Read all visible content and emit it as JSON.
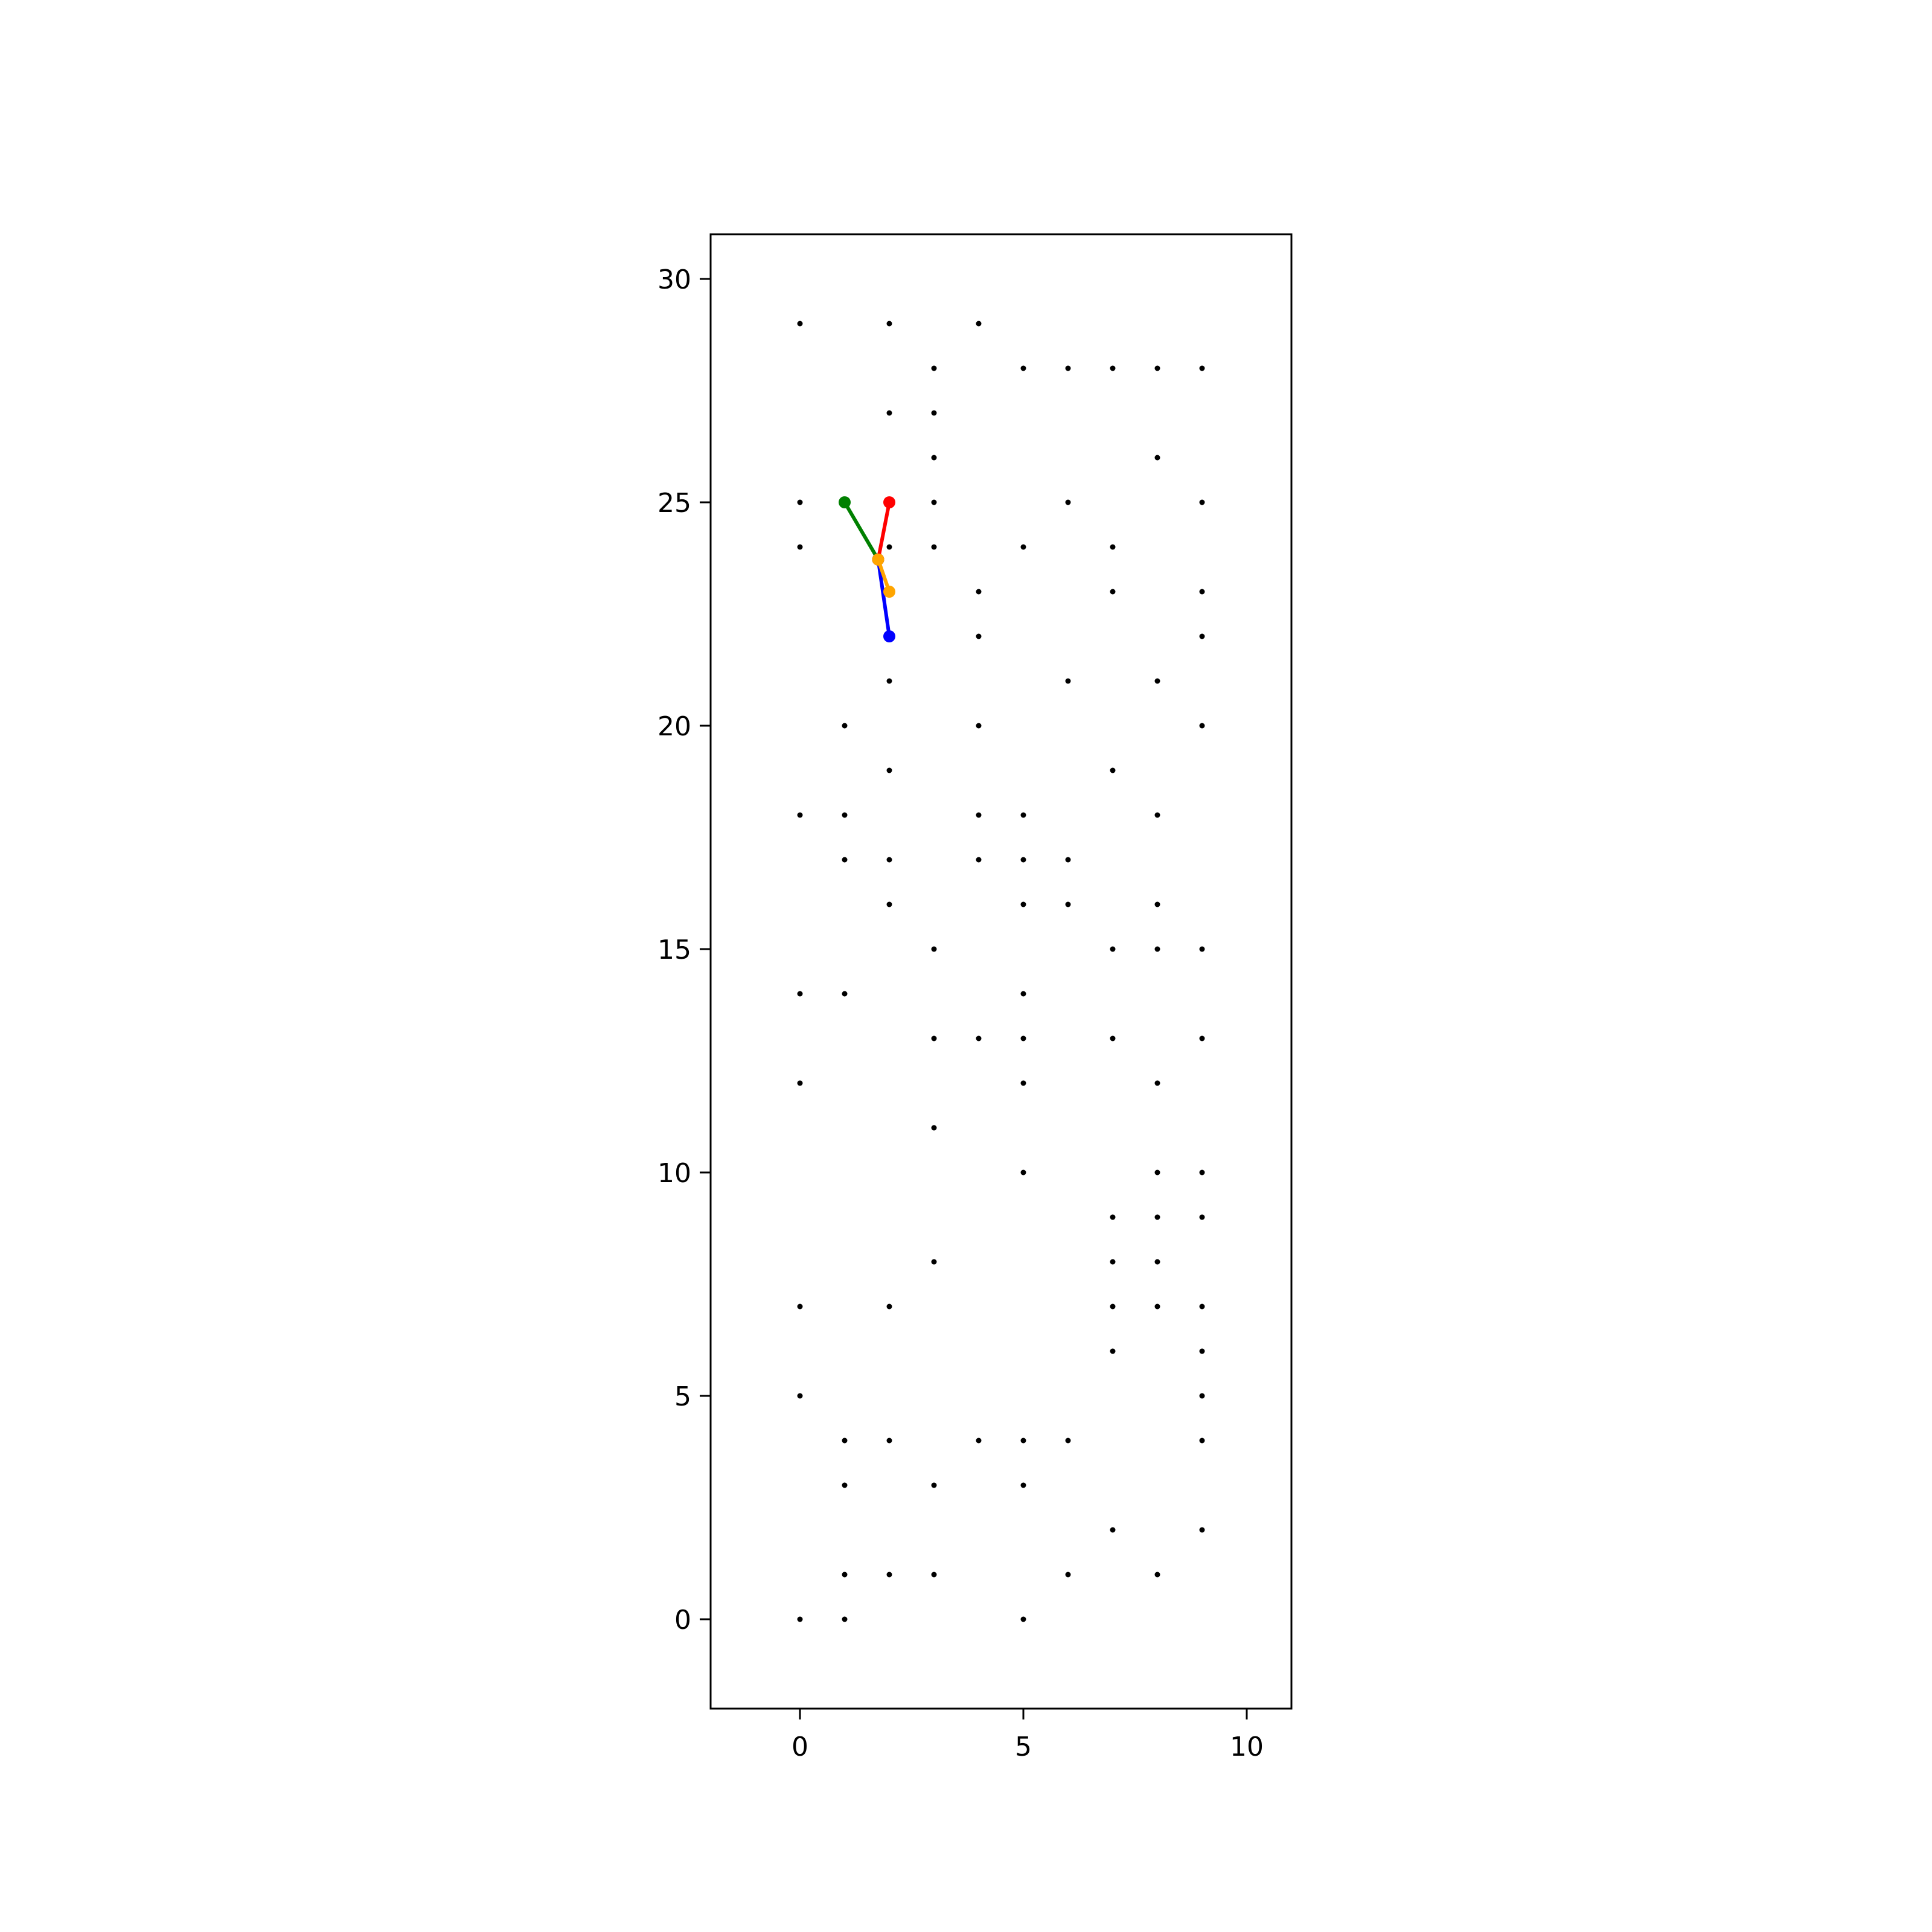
{
  "chart_data": {
    "type": "scatter",
    "title": "",
    "xlabel": "",
    "ylabel": "",
    "xlim": [
      -2,
      11
    ],
    "ylim": [
      -2,
      31
    ],
    "xticks": [
      0,
      5,
      10
    ],
    "yticks": [
      0,
      5,
      10,
      15,
      20,
      25,
      30
    ],
    "grid": false,
    "legend": "none",
    "points": [
      [
        0,
        29
      ],
      [
        2,
        29
      ],
      [
        4,
        29
      ],
      [
        3,
        28
      ],
      [
        5,
        28
      ],
      [
        6,
        28
      ],
      [
        7,
        28
      ],
      [
        8,
        28
      ],
      [
        9,
        28
      ],
      [
        2,
        27
      ],
      [
        3,
        27
      ],
      [
        3,
        26
      ],
      [
        8,
        26
      ],
      [
        0,
        25
      ],
      [
        3,
        25
      ],
      [
        6,
        25
      ],
      [
        9,
        25
      ],
      [
        0,
        24
      ],
      [
        2,
        24
      ],
      [
        3,
        24
      ],
      [
        5,
        24
      ],
      [
        7,
        24
      ],
      [
        4,
        23
      ],
      [
        7,
        23
      ],
      [
        9,
        23
      ],
      [
        4,
        22
      ],
      [
        9,
        22
      ],
      [
        2,
        21
      ],
      [
        6,
        21
      ],
      [
        8,
        21
      ],
      [
        1,
        20
      ],
      [
        4,
        20
      ],
      [
        9,
        20
      ],
      [
        2,
        19
      ],
      [
        7,
        19
      ],
      [
        0,
        18
      ],
      [
        1,
        18
      ],
      [
        4,
        18
      ],
      [
        5,
        18
      ],
      [
        8,
        18
      ],
      [
        1,
        17
      ],
      [
        2,
        17
      ],
      [
        4,
        17
      ],
      [
        5,
        17
      ],
      [
        6,
        17
      ],
      [
        2,
        16
      ],
      [
        5,
        16
      ],
      [
        6,
        16
      ],
      [
        8,
        16
      ],
      [
        3,
        15
      ],
      [
        7,
        15
      ],
      [
        8,
        15
      ],
      [
        9,
        15
      ],
      [
        0,
        14
      ],
      [
        1,
        14
      ],
      [
        5,
        14
      ],
      [
        3,
        13
      ],
      [
        4,
        13
      ],
      [
        5,
        13
      ],
      [
        7,
        13
      ],
      [
        9,
        13
      ],
      [
        0,
        12
      ],
      [
        5,
        12
      ],
      [
        8,
        12
      ],
      [
        3,
        11
      ],
      [
        5,
        10
      ],
      [
        8,
        10
      ],
      [
        9,
        10
      ],
      [
        7,
        9
      ],
      [
        8,
        9
      ],
      [
        9,
        9
      ],
      [
        3,
        8
      ],
      [
        7,
        8
      ],
      [
        8,
        8
      ],
      [
        0,
        7
      ],
      [
        2,
        7
      ],
      [
        7,
        7
      ],
      [
        8,
        7
      ],
      [
        9,
        7
      ],
      [
        7,
        6
      ],
      [
        9,
        6
      ],
      [
        0,
        5
      ],
      [
        9,
        5
      ],
      [
        1,
        4
      ],
      [
        2,
        4
      ],
      [
        4,
        4
      ],
      [
        5,
        4
      ],
      [
        6,
        4
      ],
      [
        9,
        4
      ],
      [
        1,
        3
      ],
      [
        3,
        3
      ],
      [
        5,
        3
      ],
      [
        7,
        2
      ],
      [
        9,
        2
      ],
      [
        1,
        1
      ],
      [
        2,
        1
      ],
      [
        3,
        1
      ],
      [
        6,
        1
      ],
      [
        8,
        1
      ],
      [
        0,
        0
      ],
      [
        1,
        0
      ],
      [
        5,
        0
      ]
    ],
    "point_color": "#000000",
    "segments": [
      {
        "color": "#008000",
        "from": [
          1,
          25
        ],
        "to": [
          1.75,
          23.72
        ]
      },
      {
        "color": "#ff0000",
        "from": [
          2,
          25
        ],
        "to": [
          1.75,
          23.72
        ]
      },
      {
        "color": "#0000ff",
        "from": [
          2,
          22
        ],
        "to": [
          1.75,
          23.72
        ]
      },
      {
        "color": "#ffa500",
        "from": [
          2,
          23
        ],
        "to": [
          1.75,
          23.72
        ]
      }
    ],
    "segment_order": [
      2,
      0,
      1,
      3
    ]
  }
}
